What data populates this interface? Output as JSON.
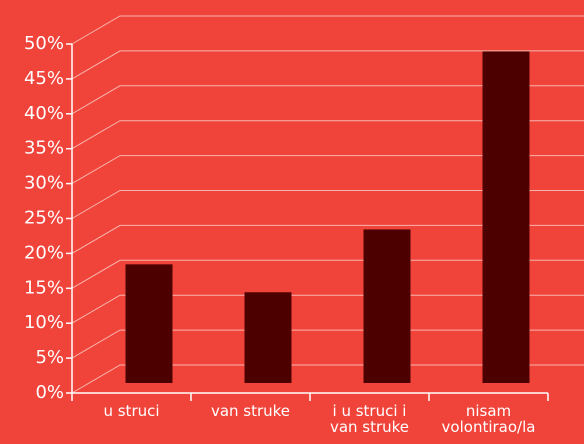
{
  "chart_data": {
    "type": "bar",
    "categories": [
      "u struci",
      "van struke",
      "i u struci i\nvan struke",
      "nisam\nvolontirao/la"
    ],
    "values": [
      17,
      13,
      22,
      47.5
    ],
    "color": "#4d0000",
    "ylim": [
      0,
      50
    ],
    "yticks": [
      {
        "value": 0,
        "label": "0%"
      },
      {
        "value": 5,
        "label": "5%"
      },
      {
        "value": 10,
        "label": "10%"
      },
      {
        "value": 15,
        "label": "15%"
      },
      {
        "value": 20,
        "label": "20%"
      },
      {
        "value": 25,
        "label": "25%"
      },
      {
        "value": 30,
        "label": "30%"
      },
      {
        "value": 35,
        "label": "35%"
      },
      {
        "value": 40,
        "label": "40%"
      },
      {
        "value": 45,
        "label": "45%"
      },
      {
        "value": 50,
        "label": "50%"
      }
    ],
    "grid": true
  }
}
